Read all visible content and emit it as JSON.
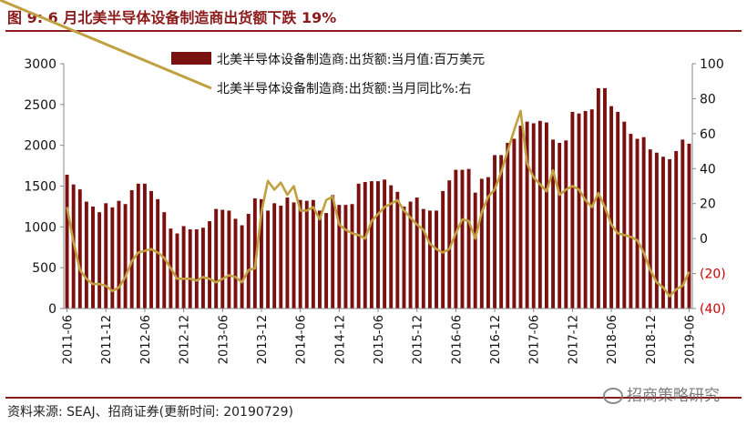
{
  "header": {
    "title": "图 9:  6 月北美半导体设备制造商出货额下跌 19%"
  },
  "footer": {
    "source": "资料来源:  SEAJ、招商证券(更新时间:  20190729)",
    "watermark": "招商策略研究"
  },
  "colors": {
    "bar": "#7a1010",
    "line": "#c0a040",
    "rule": "#8b1a1a",
    "negative_label": "#cc0000"
  },
  "chart_data": {
    "type": "bar",
    "title": "6 月北美半导体设备制造商出货额下跌 19%",
    "series": [
      {
        "name": "北美半导体设备制造商:出货额:当月值:百万美元",
        "type": "bar",
        "axis": "left",
        "values": [
          1640,
          1520,
          1460,
          1310,
          1250,
          1180,
          1290,
          1240,
          1320,
          1280,
          1450,
          1530,
          1530,
          1440,
          1340,
          1180,
          980,
          920,
          1010,
          970,
          970,
          990,
          1070,
          1220,
          1210,
          1200,
          1100,
          1020,
          1160,
          1350,
          1340,
          1200,
          1290,
          1260,
          1360,
          1300,
          1330,
          1320,
          1330,
          1200,
          1170,
          1390,
          1270,
          1270,
          1280,
          1530,
          1550,
          1560,
          1560,
          1580,
          1510,
          1430,
          1250,
          1310,
          1360,
          1220,
          1200,
          1200,
          1440,
          1570,
          1700,
          1700,
          1710,
          1420,
          1590,
          1610,
          1880,
          1880,
          2030,
          2080,
          2240,
          2290,
          2270,
          2300,
          2280,
          2070,
          2030,
          2060,
          2410,
          2390,
          2420,
          2440,
          2700,
          2700,
          2480,
          2410,
          2290,
          2140,
          2080,
          2100,
          1950,
          1910,
          1860,
          1830,
          1930,
          2070,
          2020
        ]
      },
      {
        "name": "北美半导体设备制造商:出货额:当月同比%:右",
        "type": "line",
        "axis": "right",
        "values": [
          18,
          -2,
          -18,
          -23,
          -26,
          -26,
          -27,
          -30,
          -28,
          -22,
          -13,
          -8,
          -7,
          -6,
          -8,
          -11,
          -17,
          -23,
          -23,
          -23,
          -24,
          -22,
          -23,
          -25,
          -23,
          -21,
          -22,
          -25,
          -18,
          -17,
          15,
          33,
          28,
          32,
          25,
          30,
          16,
          16,
          18,
          11,
          22,
          24,
          8,
          5,
          3,
          2,
          0,
          10,
          14,
          18,
          20,
          22,
          16,
          12,
          8,
          5,
          -3,
          -6,
          -8,
          -6,
          3,
          11,
          10,
          0,
          15,
          24,
          28,
          38,
          50,
          62,
          73,
          43,
          35,
          31,
          27,
          39,
          25,
          28,
          30,
          28,
          22,
          18,
          26,
          18,
          8,
          3,
          2,
          1,
          -1,
          -8,
          -18,
          -25,
          -28,
          -33,
          -29,
          -27,
          -19
        ]
      }
    ],
    "n_points": 97,
    "x_tick_labels": [
      "2011-06",
      "2011-12",
      "2012-06",
      "2012-12",
      "2013-06",
      "2013-12",
      "2014-06",
      "2014-12",
      "2015-06",
      "2015-12",
      "2016-06",
      "2016-12",
      "2017-06",
      "2017-12",
      "2018-06",
      "2018-12",
      "2019-06"
    ],
    "left_axis": {
      "ylim": [
        0,
        3000
      ],
      "ticks": [
        0,
        500,
        1000,
        1500,
        2000,
        2500,
        3000
      ],
      "tick_labels": [
        "0",
        "500",
        "1000",
        "1500",
        "2000",
        "2500",
        "3000"
      ]
    },
    "right_axis": {
      "ylim": [
        -40,
        100
      ],
      "ticks": [
        -40,
        -20,
        0,
        20,
        40,
        60,
        80,
        100
      ],
      "tick_labels": [
        "(40)",
        "(20)",
        "0",
        "20",
        "40",
        "60",
        "80",
        "100"
      ]
    },
    "legend": {
      "position": "top-center"
    },
    "grid": false
  }
}
